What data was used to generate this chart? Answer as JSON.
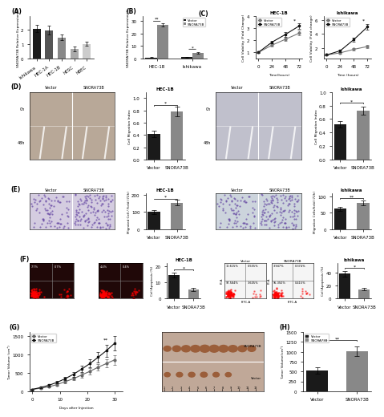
{
  "A": {
    "categories": [
      "Ishikawa",
      "HEC-1A",
      "HEC-1B",
      "hESC",
      "hBEC"
    ],
    "values": [
      2.05,
      1.95,
      1.45,
      0.65,
      1.0
    ],
    "errors": [
      0.25,
      0.3,
      0.2,
      0.15,
      0.15
    ],
    "colors": [
      "#1a1a1a",
      "#555555",
      "#888888",
      "#aaaaaa",
      "#cccccc"
    ],
    "ylabel": "SNORA73B Relative Expression/%"
  },
  "B": {
    "groups": [
      "HEC-1B",
      "Ishikawa"
    ],
    "vector_values": [
      0.8,
      0.9
    ],
    "snora_values": [
      27.0,
      4.5
    ],
    "vector_errors": [
      0.1,
      0.15
    ],
    "snora_errors": [
      1.5,
      0.5
    ],
    "vector_color": "#1a1a1a",
    "snora_color": "#888888",
    "ylabel": "SNORA73B Relative Expression/%",
    "sig_labels": [
      "**",
      "*"
    ]
  },
  "C_HEC1B": {
    "timepoints": [
      0,
      24,
      48,
      72
    ],
    "vector_values": [
      1.0,
      1.6,
      2.1,
      2.6
    ],
    "snora_values": [
      1.0,
      1.85,
      2.5,
      3.2
    ],
    "vector_errors": [
      0.05,
      0.1,
      0.15,
      0.2
    ],
    "snora_errors": [
      0.05,
      0.12,
      0.18,
      0.25
    ],
    "title": "HEC-1B",
    "xlabel": "Time(hours)",
    "ylabel": "Cell Viability (Fold Change)",
    "sig": "*"
  },
  "C_Ishikawa": {
    "timepoints": [
      0,
      24,
      48,
      72
    ],
    "vector_values": [
      1.0,
      1.3,
      1.8,
      2.2
    ],
    "snora_values": [
      1.0,
      1.6,
      3.2,
      5.0
    ],
    "vector_errors": [
      0.05,
      0.1,
      0.15,
      0.2
    ],
    "snora_errors": [
      0.05,
      0.15,
      0.3,
      0.4
    ],
    "title": "Ishikawa",
    "xlabel": "Time (hours)",
    "ylabel": "Cell Viability (Fold change)",
    "sig": "*"
  },
  "D_HEC1B": {
    "categories": [
      "Vector",
      "SNORA73B"
    ],
    "values": [
      0.42,
      0.78
    ],
    "errors": [
      0.05,
      0.08
    ],
    "colors": [
      "#1a1a1a",
      "#888888"
    ],
    "ylabel": "Cell Migration Index",
    "title": "HEC-1B",
    "sig": "*",
    "ylim": [
      0.0,
      1.1
    ]
  },
  "D_Ishikawa": {
    "categories": [
      "Vector",
      "SNORA73B"
    ],
    "values": [
      0.52,
      0.72
    ],
    "errors": [
      0.05,
      0.06
    ],
    "colors": [
      "#1a1a1a",
      "#888888"
    ],
    "ylabel": "Cell Migration Index",
    "title": "Ishikawa",
    "sig": "*",
    "ylim": [
      0.0,
      1.0
    ]
  },
  "E_HEC1B": {
    "categories": [
      "Vector",
      "SNORA73B"
    ],
    "values": [
      100,
      155
    ],
    "errors": [
      12,
      18
    ],
    "colors": [
      "#1a1a1a",
      "#888888"
    ],
    "ylabel": "Migrated Cell / Field (72h)",
    "title": "HEC-1B",
    "sig": "*",
    "ylim": [
      0,
      210
    ]
  },
  "E_Ishikawa": {
    "categories": [
      "Vector",
      "SNORA73B"
    ],
    "values": [
      62,
      80
    ],
    "errors": [
      6,
      8
    ],
    "colors": [
      "#1a1a1a",
      "#888888"
    ],
    "ylabel": "Migration Cells/field (72h)",
    "title": "Ishikawa",
    "sig": "**",
    "ylim": [
      0,
      110
    ]
  },
  "F_HEC1B": {
    "categories": [
      "Vector",
      "SNORA73B"
    ],
    "values": [
      14.5,
      5.5
    ],
    "errors": [
      1.5,
      0.8
    ],
    "colors": [
      "#1a1a1a",
      "#888888"
    ],
    "ylabel": "Cell Apoptosis (%)",
    "title": "HEC-1B",
    "sig": "*",
    "ylim": [
      0,
      22
    ]
  },
  "F_Ishikawa": {
    "categories": [
      "Vector",
      "SNORA73B"
    ],
    "values": [
      38,
      14
    ],
    "errors": [
      4,
      2
    ],
    "colors": [
      "#1a1a1a",
      "#888888"
    ],
    "ylabel": "Cell Apoptosis (%)",
    "title": "Ishikawa",
    "sig": "*",
    "ylim": [
      0,
      55
    ]
  },
  "G": {
    "timepoints": [
      0,
      3,
      6,
      9,
      12,
      15,
      18,
      21,
      24,
      27,
      30
    ],
    "vector_values": [
      50,
      80,
      120,
      180,
      260,
      340,
      440,
      540,
      650,
      750,
      850
    ],
    "snora_values": [
      50,
      100,
      160,
      240,
      340,
      460,
      600,
      750,
      920,
      1100,
      1300
    ],
    "vector_errors": [
      10,
      15,
      20,
      28,
      38,
      50,
      65,
      80,
      95,
      110,
      130
    ],
    "snora_errors": [
      10,
      18,
      25,
      35,
      50,
      68,
      88,
      110,
      135,
      160,
      190
    ],
    "xlabel": "Days after Injection",
    "ylabel": "Tumor Volume (cm³)",
    "sig": "**",
    "ylim": [
      0,
      1600
    ]
  },
  "H": {
    "categories": [
      "Vector",
      "SNORA73B"
    ],
    "values": [
      520,
      1020
    ],
    "errors": [
      80,
      120
    ],
    "colors": [
      "#1a1a1a",
      "#888888"
    ],
    "ylabel": "Tumor Volume(cm³)",
    "sig": "**",
    "ylim": [
      0,
      1500
    ]
  },
  "D_img1_bg": "#b8a898",
  "D_img2_bg": "#c0c0cc",
  "E_img1_bg": "#d4cce0",
  "E_img2_bg": "#ccd4dc",
  "F_fc_dark_bg": "#200808",
  "F_fc_light_bg": "#f5f5f5",
  "tumor_img_bg": "#c0a898",
  "colors": {
    "vector_line": "#666666",
    "snora_line": "#111111",
    "background": "#ffffff"
  }
}
